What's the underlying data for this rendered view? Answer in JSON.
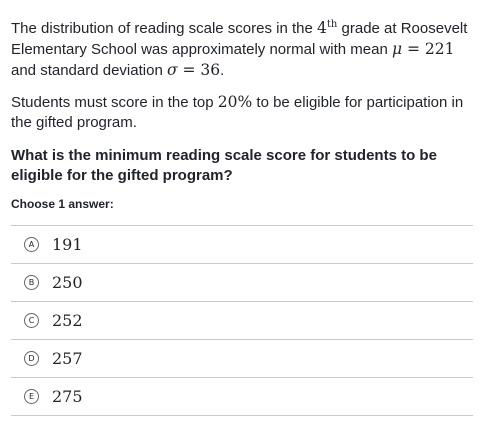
{
  "question": {
    "p1_text1": "The distribution of reading scale scores in the ",
    "p1_grade_num": "4",
    "p1_grade_sup": "th",
    "p1_text2": " grade at Roosevelt Elementary School was approximately normal with mean ",
    "p1_mu": "μ",
    "p1_mean_eq": " = 221",
    "p1_text3": " and standard deviation ",
    "p1_sigma": "σ",
    "p1_sd_eq": " = 36",
    "p1_text4": ".",
    "p2_text1": "Students must score in the top ",
    "p2_pct": "20%",
    "p2_text2": " to be eligible for participation in the gifted program.",
    "prompt": "What is the minimum reading scale score for students to be eligible for the gifted program?"
  },
  "choose_label": "Choose 1 answer:",
  "choices": [
    {
      "letter": "A",
      "value": "191"
    },
    {
      "letter": "B",
      "value": "250"
    },
    {
      "letter": "C",
      "value": "252"
    },
    {
      "letter": "D",
      "value": "257"
    },
    {
      "letter": "E",
      "value": "275"
    }
  ]
}
